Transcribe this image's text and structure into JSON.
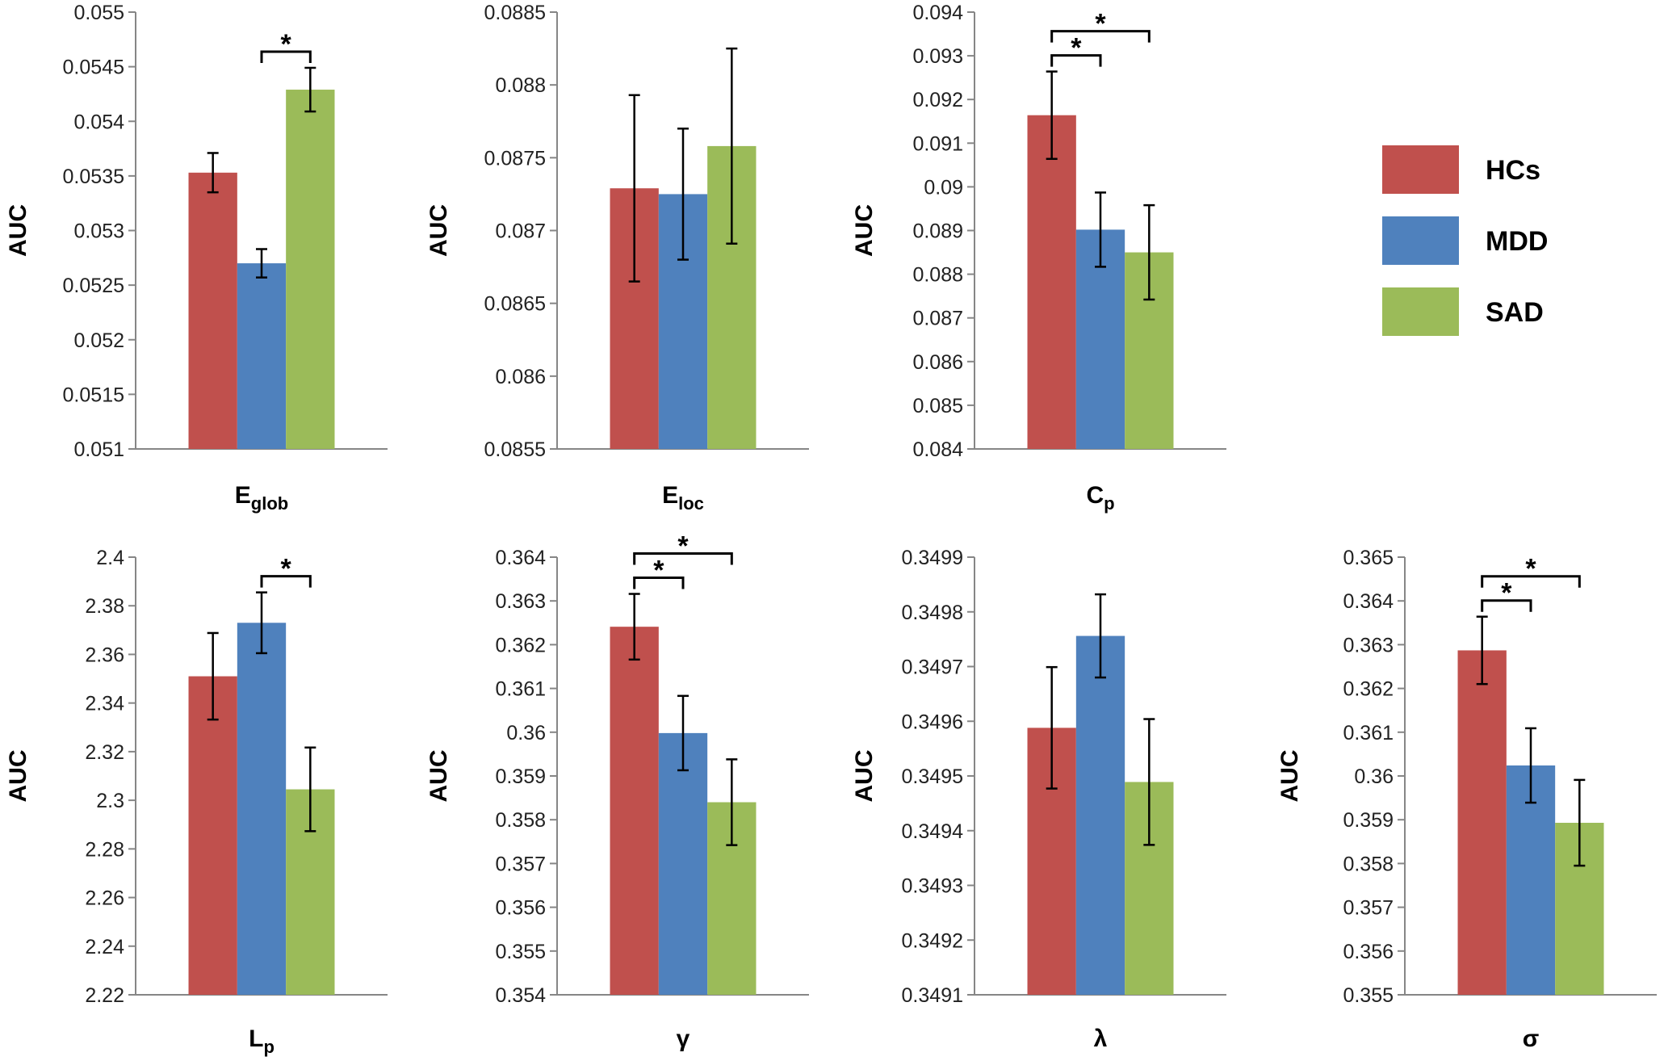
{
  "chart_data": [
    {
      "type": "bar",
      "xlabel": "E",
      "xlabel_sub": "glob",
      "ylabel": "AUC",
      "ylim": [
        0.051,
        0.055
      ],
      "yticks": [
        "0.051",
        "0.0515",
        "0.052",
        "0.0525",
        "0.053",
        "0.0535",
        "0.054",
        "0.0545",
        "0.055"
      ],
      "series": [
        {
          "name": "HCs",
          "value": 0.05353,
          "err": 0.00018
        },
        {
          "name": "MDD",
          "value": 0.0527,
          "err": 0.00013
        },
        {
          "name": "SAD",
          "value": 0.05429,
          "err": 0.0002
        }
      ],
      "significance": [
        {
          "from": 1,
          "to": 2,
          "label": "*"
        }
      ]
    },
    {
      "type": "bar",
      "xlabel": "E",
      "xlabel_sub": "loc",
      "ylabel": "AUC",
      "ylim": [
        0.0855,
        0.0885
      ],
      "yticks": [
        "0.0855",
        "0.086",
        "0.0865",
        "0.087",
        "0.0875",
        "0.088",
        "0.0885"
      ],
      "series": [
        {
          "name": "HCs",
          "value": 0.08729,
          "err": 0.00064
        },
        {
          "name": "MDD",
          "value": 0.08725,
          "err": 0.00045
        },
        {
          "name": "SAD",
          "value": 0.08758,
          "err": 0.00067
        }
      ],
      "significance": []
    },
    {
      "type": "bar",
      "xlabel": "C",
      "xlabel_sub": "p",
      "ylabel": "AUC",
      "ylim": [
        0.084,
        0.094
      ],
      "yticks": [
        "0.084",
        "0.085",
        "0.086",
        "0.087",
        "0.088",
        "0.089",
        "0.09",
        "0.091",
        "0.092",
        "0.093",
        "0.094"
      ],
      "series": [
        {
          "name": "HCs",
          "value": 0.09164,
          "err": 0.001
        },
        {
          "name": "MDD",
          "value": 0.08902,
          "err": 0.00085
        },
        {
          "name": "SAD",
          "value": 0.0885,
          "err": 0.00108
        }
      ],
      "significance": [
        {
          "from": 0,
          "to": 1,
          "label": "*"
        },
        {
          "from": 0,
          "to": 2,
          "label": "*"
        }
      ]
    },
    {
      "type": "bar",
      "xlabel": "L",
      "xlabel_sub": "p",
      "ylabel": "AUC",
      "ylim": [
        2.22,
        2.4
      ],
      "yticks": [
        "2.22",
        "2.24",
        "2.26",
        "2.28",
        "2.3",
        "2.32",
        "2.34",
        "2.36",
        "2.38",
        "2.4"
      ],
      "series": [
        {
          "name": "HCs",
          "value": 2.351,
          "err": 0.0178
        },
        {
          "name": "MDD",
          "value": 2.373,
          "err": 0.0125
        },
        {
          "name": "SAD",
          "value": 2.3045,
          "err": 0.0172
        }
      ],
      "significance": [
        {
          "from": 1,
          "to": 2,
          "label": "*"
        }
      ]
    },
    {
      "type": "bar",
      "xlabel": "γ",
      "xlabel_sub": "",
      "ylabel": "AUC",
      "ylim": [
        0.354,
        0.364
      ],
      "yticks": [
        "0.354",
        "0.355",
        "0.356",
        "0.357",
        "0.358",
        "0.359",
        "0.36",
        "0.361",
        "0.362",
        "0.363",
        "0.364"
      ],
      "series": [
        {
          "name": "HCs",
          "value": 0.36241,
          "err": 0.00075
        },
        {
          "name": "MDD",
          "value": 0.35998,
          "err": 0.00085
        },
        {
          "name": "SAD",
          "value": 0.3584,
          "err": 0.00098
        }
      ],
      "significance": [
        {
          "from": 0,
          "to": 1,
          "label": "*"
        },
        {
          "from": 0,
          "to": 2,
          "label": "*"
        }
      ]
    },
    {
      "type": "bar",
      "xlabel": "λ",
      "xlabel_sub": "",
      "ylabel": "AUC",
      "ylim": [
        0.3491,
        0.3499
      ],
      "yticks": [
        "0.3491",
        "0.3492",
        "0.3493",
        "0.3494",
        "0.3495",
        "0.3496",
        "0.3497",
        "0.3498",
        "0.3499"
      ],
      "series": [
        {
          "name": "HCs",
          "value": 0.349588,
          "err": 0.000111
        },
        {
          "name": "MDD",
          "value": 0.349756,
          "err": 7.6e-05
        },
        {
          "name": "SAD",
          "value": 0.349489,
          "err": 0.000115
        }
      ],
      "significance": []
    },
    {
      "type": "bar",
      "xlabel": "σ",
      "xlabel_sub": "",
      "ylabel": "AUC",
      "ylim": [
        0.355,
        0.365
      ],
      "yticks": [
        "0.355",
        "0.356",
        "0.357",
        "0.358",
        "0.359",
        "0.36",
        "0.361",
        "0.362",
        "0.363",
        "0.364",
        "0.365"
      ],
      "series": [
        {
          "name": "HCs",
          "value": 0.36287,
          "err": 0.00077
        },
        {
          "name": "MDD",
          "value": 0.36024,
          "err": 0.00085
        },
        {
          "name": "SAD",
          "value": 0.35893,
          "err": 0.00098
        }
      ],
      "significance": [
        {
          "from": 0,
          "to": 1,
          "label": "*"
        },
        {
          "from": 0,
          "to": 2,
          "label": "*"
        }
      ]
    }
  ],
  "legend": {
    "position": "right",
    "items": [
      {
        "name": "HCs",
        "color": "#c0504d"
      },
      {
        "name": "MDD",
        "color": "#4f81bd"
      },
      {
        "name": "SAD",
        "color": "#9bbb59"
      }
    ]
  }
}
